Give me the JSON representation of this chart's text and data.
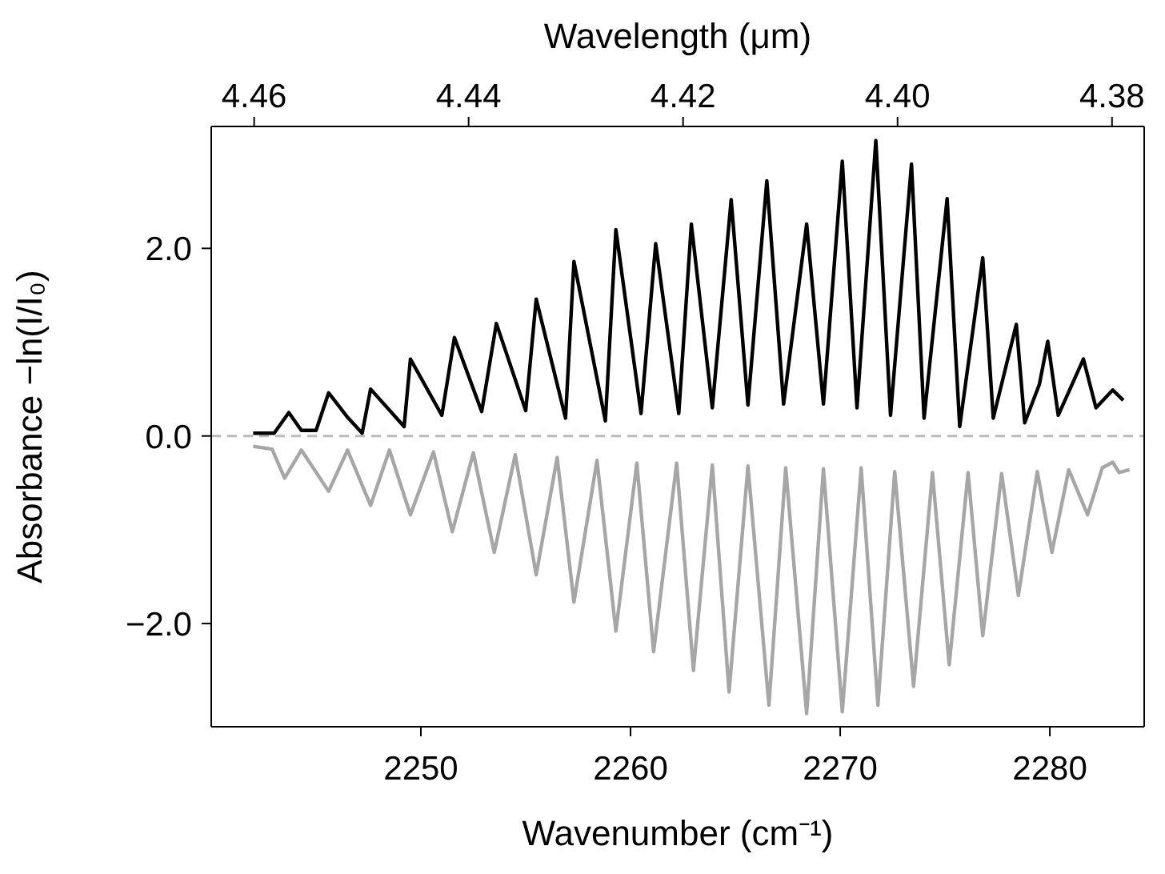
{
  "chart_data": {
    "type": "line",
    "xlabel": "Wavenumber (cm⁻¹)",
    "ylabel": "Absorbance −ln(I/I₀)",
    "x2label": "Wavelength (μm)",
    "xlim": [
      2240,
      2284.5
    ],
    "xticks": [
      2250,
      2260,
      2270,
      2280
    ],
    "x2lim": [
      4.464,
      4.377
    ],
    "x2ticks": [
      4.46,
      4.44,
      4.42,
      {
        "value": 4.4,
        "label": "4.40"
      },
      4.38
    ],
    "ylim": [
      -3.1,
      3.3
    ],
    "yticks": [
      {
        "value": -2,
        "label": "−2.0"
      },
      {
        "value": 0,
        "label": "0.0"
      },
      {
        "value": 2,
        "label": "2.0"
      }
    ],
    "grid": false,
    "legend": false,
    "marker": "none",
    "line_style": "solid",
    "ref_lines": [
      {
        "axis": "y",
        "value": 0,
        "color": "#bbbbbb",
        "line_style": "dashed"
      }
    ],
    "series": [
      {
        "color": "#000000",
        "x": [
          2242.0,
          2243.0,
          2243.7,
          2244.3,
          2245.0,
          2245.6,
          2246.5,
          2247.2,
          2247.6,
          2249.2,
          2249.5,
          2251.0,
          2251.6,
          2252.9,
          2253.6,
          2255.0,
          2255.5,
          2256.9,
          2257.3,
          2258.8,
          2259.3,
          2260.5,
          2261.2,
          2262.3,
          2262.9,
          2263.9,
          2264.8,
          2265.6,
          2266.5,
          2267.3,
          2268.4,
          2269.2,
          2270.1,
          2270.8,
          2271.7,
          2272.4,
          2273.4,
          2274.0,
          2275.1,
          2275.7,
          2276.8,
          2277.3,
          2278.4,
          2278.8,
          2279.5,
          2279.9,
          2280.4,
          2281.6,
          2282.2,
          2283.0,
          2283.5
        ],
        "values": [
          0.03,
          0.03,
          0.25,
          0.06,
          0.06,
          0.46,
          0.2,
          0.03,
          0.5,
          0.1,
          0.82,
          0.22,
          1.05,
          0.26,
          1.2,
          0.27,
          1.46,
          0.19,
          1.86,
          0.16,
          2.2,
          0.24,
          2.05,
          0.24,
          2.26,
          0.3,
          2.52,
          0.33,
          2.72,
          0.34,
          2.26,
          0.34,
          2.93,
          0.3,
          3.15,
          0.22,
          2.9,
          0.19,
          2.53,
          0.1,
          1.9,
          0.19,
          1.19,
          0.14,
          0.55,
          1.01,
          0.22,
          0.82,
          0.3,
          0.49,
          0.38
        ]
      },
      {
        "color": "#a6a6a6",
        "x": [
          2242.0,
          2242.9,
          2243.5,
          2244.3,
          2245.6,
          2246.5,
          2247.6,
          2248.5,
          2249.5,
          2250.6,
          2251.5,
          2252.5,
          2253.5,
          2254.5,
          2255.5,
          2256.5,
          2257.3,
          2258.4,
          2259.3,
          2260.3,
          2261.1,
          2262.2,
          2263.0,
          2263.9,
          2264.7,
          2265.6,
          2266.6,
          2267.4,
          2268.4,
          2269.2,
          2270.1,
          2271.0,
          2271.8,
          2272.6,
          2273.5,
          2274.4,
          2275.2,
          2276.1,
          2276.8,
          2277.7,
          2278.5,
          2279.4,
          2280.1,
          2280.9,
          2281.8,
          2282.5,
          2283.0,
          2283.3,
          2283.8
        ],
        "values": [
          -0.11,
          -0.14,
          -0.45,
          -0.15,
          -0.59,
          -0.15,
          -0.74,
          -0.15,
          -0.84,
          -0.17,
          -1.02,
          -0.18,
          -1.24,
          -0.2,
          -1.48,
          -0.23,
          -1.77,
          -0.26,
          -2.08,
          -0.29,
          -2.3,
          -0.29,
          -2.5,
          -0.31,
          -2.73,
          -0.32,
          -2.87,
          -0.34,
          -2.96,
          -0.35,
          -2.94,
          -0.34,
          -2.87,
          -0.38,
          -2.67,
          -0.39,
          -2.44,
          -0.39,
          -2.13,
          -0.4,
          -1.7,
          -0.38,
          -1.24,
          -0.36,
          -0.84,
          -0.34,
          -0.28,
          -0.39,
          -0.36
        ]
      }
    ]
  }
}
